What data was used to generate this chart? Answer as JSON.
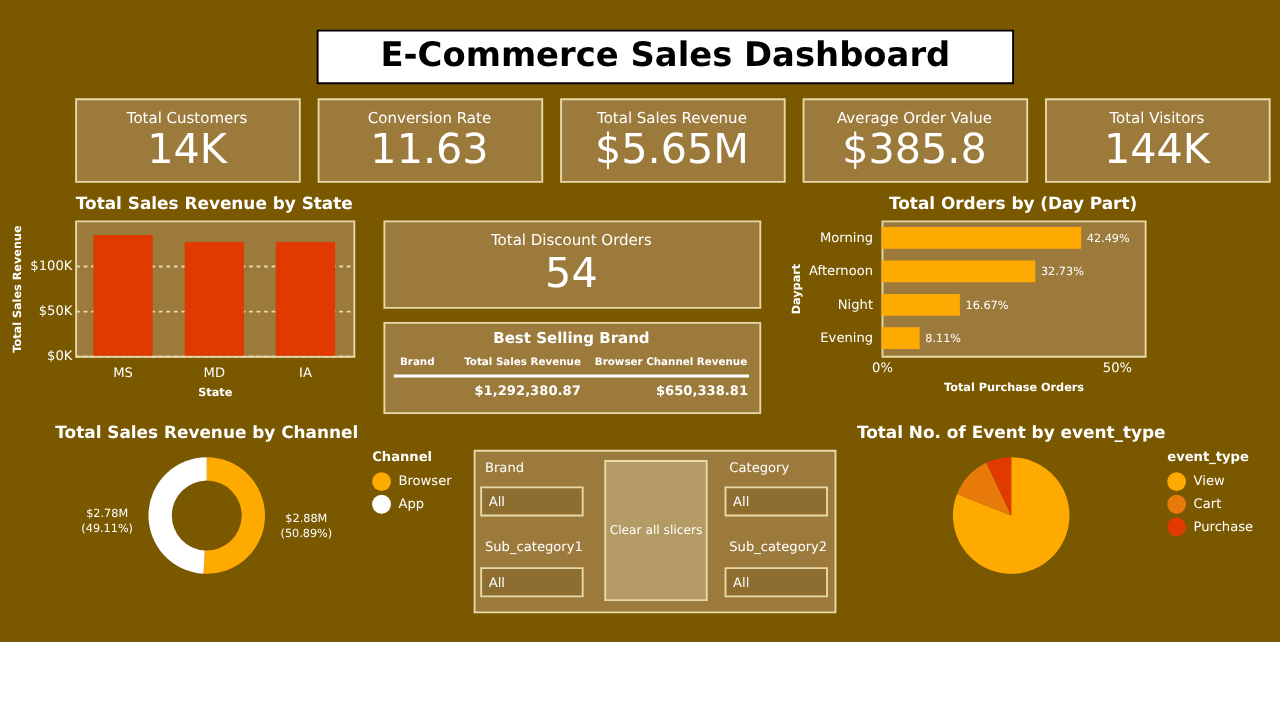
{
  "chart_data": [
    {
      "type": "other",
      "title": "E-Commerce Sales Dashboard"
    },
    {
      "type": "other",
      "title": "Total Customers",
      "annotations": [
        "14K"
      ]
    },
    {
      "type": "other",
      "title": "Conversion Rate",
      "annotations": [
        "11.63"
      ]
    },
    {
      "type": "other",
      "title": "Total Sales Revenue",
      "annotations": [
        "$5.65M"
      ]
    },
    {
      "type": "other",
      "title": "Average Order Value",
      "annotations": [
        "$385.8"
      ]
    },
    {
      "type": "other",
      "title": "Total Visitors",
      "annotations": [
        "144K"
      ]
    },
    {
      "type": "bar",
      "title": "Total Sales Revenue by State",
      "xlabel": "State",
      "ylabel": "Total Sales Revenue",
      "categories": [
        "MS",
        "MD",
        "IA"
      ],
      "values": [
        134000,
        126000,
        126000
      ],
      "color": "#e03a00",
      "ylim": [
        0,
        150000
      ],
      "yticks": [
        {
          "value": 0,
          "label": "$0K"
        },
        {
          "value": 50000,
          "label": "$50K"
        },
        {
          "value": 100000,
          "label": "$100K"
        }
      ],
      "grid": "y"
    },
    {
      "type": "other",
      "title": "Total Discount Orders",
      "annotations": [
        "54"
      ]
    },
    {
      "type": "other",
      "title": "Best Selling Brand",
      "annotations": [
        "Brand",
        "Total Sales Revenue",
        "Browser Channel Revenue",
        "$1,292,380.87",
        "$650,338.81"
      ]
    },
    {
      "type": "bar",
      "orientation": "horizontal",
      "title": "Total Orders by (Day Part)",
      "xlabel": "Total Purchase Orders",
      "ylabel": "Daypart",
      "categories": [
        "Morning",
        "Afternoon",
        "Night",
        "Evening"
      ],
      "values": [
        42.49,
        32.73,
        16.67,
        8.11
      ],
      "value_labels": [
        "42.49%",
        "32.73%",
        "16.67%",
        "8.11%"
      ],
      "color": "#ffaa00",
      "xlim": [
        0,
        56
      ],
      "xticks": [
        {
          "value": 0,
          "label": "0%"
        },
        {
          "value": 50,
          "label": "50%"
        }
      ]
    },
    {
      "type": "donut",
      "title": "Total Sales Revenue by Channel",
      "legend_title": "Channel",
      "legend": "right",
      "categories": [
        "Browser",
        "App"
      ],
      "values": [
        50.89,
        49.11
      ],
      "value_labels": [
        "$2.88M (50.89%)",
        "$2.78M (49.11%)"
      ],
      "colors": [
        "#ffaa00",
        "#ffffff"
      ]
    },
    {
      "type": "other",
      "annotations": [
        "Brand",
        "All",
        "Sub_category1",
        "All",
        "Clear all slicers",
        "Category",
        "All",
        "Sub_category2",
        "All"
      ]
    },
    {
      "type": "pie",
      "title": "Total No. of Event by event_type",
      "legend_title": "event_type",
      "legend": "right",
      "categories": [
        "View",
        "Cart",
        "Purchase"
      ],
      "values": [
        81,
        12,
        7
      ],
      "colors": [
        "#ffaa00",
        "#e87a0a",
        "#e03a00"
      ]
    }
  ]
}
